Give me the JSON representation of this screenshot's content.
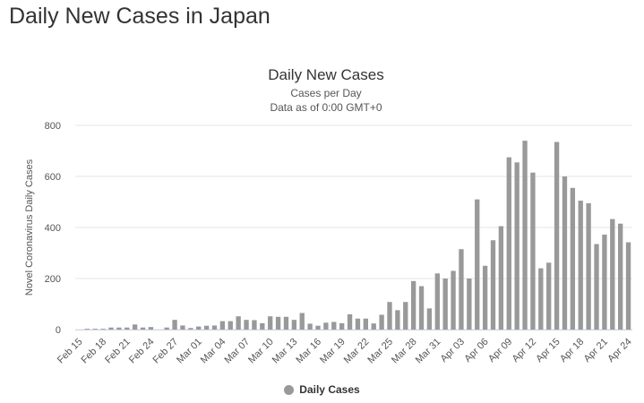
{
  "page": {
    "heading": "Daily New Cases in Japan"
  },
  "colors": {
    "bar": "#999999",
    "grid": "#e6e6e6",
    "axis": "#ccd6eb"
  },
  "chart_data": {
    "type": "bar",
    "title": "Daily New Cases",
    "subtitle_lines": [
      "Cases per Day",
      "Data as of 0:00 GMT+0"
    ],
    "ylabel": "Novel Coronavirus Daily Cases",
    "xlabel": "",
    "ylim": [
      0,
      800
    ],
    "yticks": [
      0,
      200,
      400,
      600,
      800
    ],
    "grid": true,
    "legend_position": "bottom-center",
    "categories": [
      "Feb 15",
      "Feb 16",
      "Feb 17",
      "Feb 18",
      "Feb 19",
      "Feb 20",
      "Feb 21",
      "Feb 22",
      "Feb 23",
      "Feb 24",
      "Feb 25",
      "Feb 26",
      "Feb 27",
      "Feb 28",
      "Feb 29",
      "Mar 01",
      "Mar 02",
      "Mar 03",
      "Mar 04",
      "Mar 05",
      "Mar 06",
      "Mar 07",
      "Mar 08",
      "Mar 09",
      "Mar 10",
      "Mar 11",
      "Mar 12",
      "Mar 13",
      "Mar 14",
      "Mar 15",
      "Mar 16",
      "Mar 17",
      "Mar 18",
      "Mar 19",
      "Mar 20",
      "Mar 21",
      "Mar 22",
      "Mar 23",
      "Mar 24",
      "Mar 25",
      "Mar 26",
      "Mar 27",
      "Mar 28",
      "Mar 29",
      "Mar 30",
      "Mar 31",
      "Apr 01",
      "Apr 02",
      "Apr 03",
      "Apr 04",
      "Apr 05",
      "Apr 06",
      "Apr 07",
      "Apr 08",
      "Apr 09",
      "Apr 10",
      "Apr 11",
      "Apr 12",
      "Apr 13",
      "Apr 14",
      "Apr 15",
      "Apr 16",
      "Apr 17",
      "Apr 18",
      "Apr 19",
      "Apr 20",
      "Apr 21",
      "Apr 22",
      "Apr 23",
      "Apr 24"
    ],
    "tick_labels": [
      "Feb 15",
      "Feb 18",
      "Feb 21",
      "Feb 24",
      "Feb 27",
      "Mar 01",
      "Mar 04",
      "Mar 07",
      "Mar 10",
      "Mar 13",
      "Mar 16",
      "Mar 19",
      "Mar 22",
      "Mar 25",
      "Mar 28",
      "Mar 31",
      "Apr 03",
      "Apr 06",
      "Apr 09",
      "Apr 12",
      "Apr 15",
      "Apr 18",
      "Apr 21",
      "Apr 24"
    ],
    "series": [
      {
        "name": "Daily Cases",
        "color": "#999999",
        "values": [
          0,
          3,
          3,
          3,
          8,
          8,
          8,
          20,
          8,
          10,
          0,
          8,
          38,
          16,
          6,
          12,
          15,
          16,
          33,
          33,
          52,
          38,
          37,
          25,
          52,
          50,
          50,
          38,
          65,
          23,
          15,
          27,
          30,
          25,
          60,
          43,
          43,
          24,
          58,
          108,
          76,
          108,
          190,
          170,
          83,
          220,
          200,
          230,
          315,
          200,
          510,
          250,
          350,
          405,
          675,
          655,
          740,
          615,
          240,
          262,
          735,
          600,
          555,
          505,
          495,
          335,
          372,
          433,
          415,
          342
        ]
      }
    ]
  }
}
